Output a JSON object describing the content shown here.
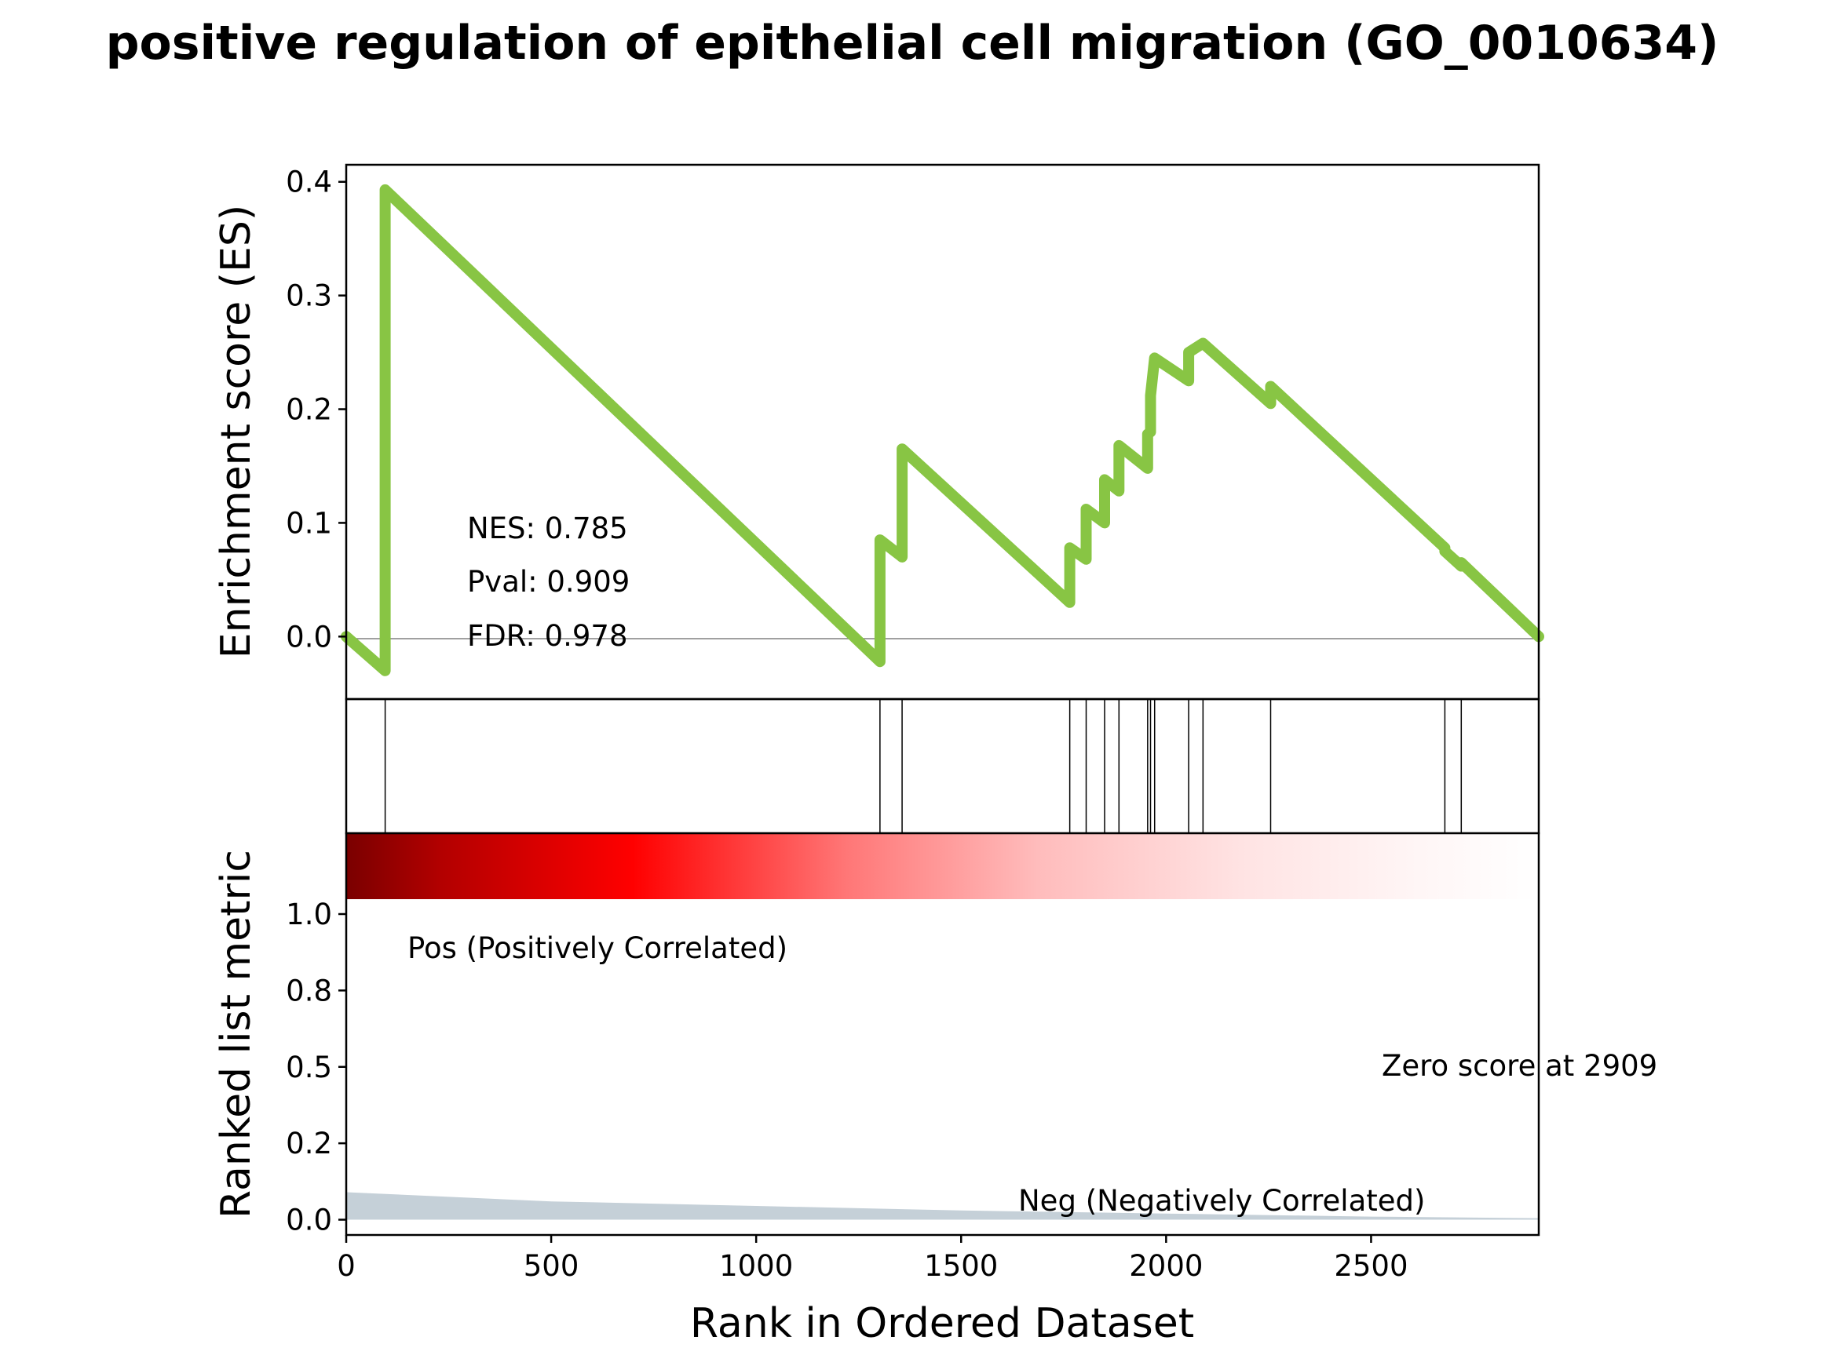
{
  "chart_data": {
    "type": "line",
    "title": "positive regulation of epithelial cell migration (GO_0010634)",
    "xlabel": "Rank in Ordered Dataset",
    "xlim": [
      0,
      2909
    ],
    "x_ticks": [
      "0",
      "500",
      "1000",
      "1500",
      "2000",
      "2500"
    ],
    "x_tick_values": [
      0,
      500,
      1000,
      1500,
      2000,
      2500
    ],
    "es_panel": {
      "ylabel": "Enrichment score (ES)",
      "ylim": [
        -0.055,
        0.415
      ],
      "y_ticks": [
        "0.0",
        "0.1",
        "0.2",
        "0.3",
        "0.4"
      ],
      "y_tick_values": [
        0.0,
        0.1,
        0.2,
        0.3,
        0.4
      ],
      "line_color": "#88c544",
      "zero_line_color": "#808080",
      "series": [
        {
          "x": [
            0,
            95,
            95,
            1302,
            1302,
            1356,
            1356,
            1765,
            1765,
            1805,
            1805,
            1850,
            1850,
            1885,
            1885,
            1955,
            1955,
            1962,
            1962,
            1972,
            1972,
            2055,
            2055,
            2090,
            2090,
            2255,
            2255,
            2680,
            2680,
            2720,
            2720,
            2909
          ],
          "y": [
            0.0,
            -0.03,
            0.393,
            -0.022,
            0.085,
            0.07,
            0.165,
            0.03,
            0.078,
            0.068,
            0.112,
            0.1,
            0.138,
            0.128,
            0.168,
            0.148,
            0.178,
            0.18,
            0.212,
            0.245,
            0.245,
            0.225,
            0.25,
            0.258,
            0.258,
            0.205,
            0.22,
            0.078,
            0.075,
            0.062,
            0.065,
            0.0
          ]
        }
      ],
      "annotations": [
        "NES: 0.785",
        "Pval: 0.909",
        "FDR: 0.978"
      ]
    },
    "hits_panel": {
      "hit_ranks": [
        95,
        1302,
        1356,
        1765,
        1805,
        1850,
        1885,
        1955,
        1962,
        1972,
        2055,
        2090,
        2255,
        2680,
        2720
      ]
    },
    "rank_panel": {
      "ylabel": "Ranked list metric",
      "ylim": [
        -0.05,
        1.0
      ],
      "y_ticks": [
        "0.0",
        "0.2",
        "0.5",
        "0.8",
        "1.0"
      ],
      "y_tick_values": [
        0.0,
        0.25,
        0.5,
        0.75,
        1.0
      ],
      "metric_x": [
        0,
        500,
        1000,
        1500,
        2000,
        2500,
        2909
      ],
      "metric_y": [
        0.09,
        0.06,
        0.045,
        0.03,
        0.02,
        0.01,
        0.005
      ],
      "fill_color": "#c5d0d8",
      "heatmap_colors": [
        "#7a0000",
        "#ff0000",
        "#ffb3b3",
        "#ffffff"
      ],
      "pos_label": "Pos (Positively Correlated)",
      "pos_color": "#ff0000",
      "neg_label": "Neg (Negatively Correlated)",
      "neg_color": "#0000ff",
      "zero_score_label": "Zero score at 2909"
    }
  }
}
